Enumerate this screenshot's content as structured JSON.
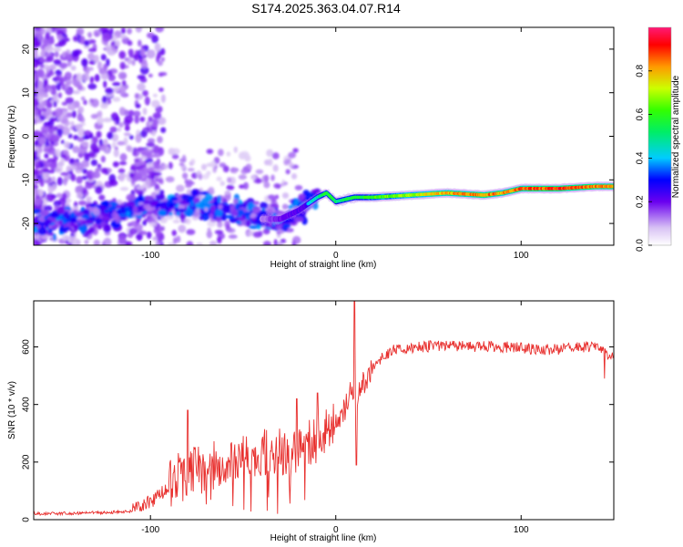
{
  "title": "S174.2025.363.04.07.R14",
  "chart_data": [
    {
      "type": "heatmap",
      "title": "S174.2025.363.04.07.R14",
      "xlabel": "Height of straight line (km)",
      "ylabel": "Frequency (Hz)",
      "xlim": [
        -163,
        150
      ],
      "ylim": [
        -25,
        25
      ],
      "xticks": [
        -100,
        0,
        100
      ],
      "xtick_labels": [
        "-100",
        "0",
        "100"
      ],
      "yticks": [
        -20,
        -10,
        0,
        10,
        20
      ],
      "ytick_labels": [
        "-20",
        "-10",
        "0",
        "10",
        "20"
      ],
      "colorbar": {
        "label": "Normalized spectral amplitude",
        "range": [
          0,
          1
        ],
        "ticks": [
          0.0,
          0.2,
          0.4,
          0.6,
          0.8
        ],
        "tick_labels": [
          "0.0",
          "0.2",
          "0.4",
          "0.6",
          "0.8"
        ]
      },
      "signal_track": {
        "description_points_x": [
          -163,
          -120,
          -100,
          -80,
          -60,
          -40,
          -30,
          -20,
          -10,
          -5,
          0,
          5,
          10,
          20,
          40,
          60,
          80,
          90,
          100,
          120,
          140,
          150
        ],
        "frequency_hz": [
          -20,
          -18,
          -16,
          -16,
          -17,
          -19,
          -19,
          -17,
          -14,
          -13,
          -15,
          -14.5,
          -14,
          -14,
          -13.5,
          -13,
          -13.5,
          -13,
          -12,
          -12,
          -11.5,
          -11.5
        ],
        "amplitude": [
          0.1,
          0.15,
          0.25,
          0.25,
          0.2,
          0.2,
          0.35,
          0.4,
          0.45,
          0.6,
          0.5,
          0.55,
          0.55,
          0.6,
          0.7,
          0.8,
          0.85,
          0.8,
          0.85,
          0.9,
          0.85,
          0.8
        ]
      }
    },
    {
      "type": "line",
      "xlabel": "Height of straight line (km)",
      "ylabel": "SNR (10 * v/v)",
      "xlim": [
        -163,
        150
      ],
      "ylim": [
        0,
        760
      ],
      "xticks": [
        -100,
        0,
        100
      ],
      "xtick_labels": [
        "-100",
        "0",
        "100"
      ],
      "yticks": [
        0,
        200,
        400,
        600
      ],
      "ytick_labels": [
        "0",
        "200",
        "400",
        "600"
      ],
      "color": "#e8302e",
      "series": [
        {
          "name": "SNR",
          "x": [
            -163,
            -140,
            -120,
            -110,
            -105,
            -100,
            -95,
            -90,
            -85,
            -80,
            -75,
            -70,
            -65,
            -60,
            -55,
            -50,
            -45,
            -40,
            -35,
            -30,
            -25,
            -20,
            -15,
            -10,
            -5,
            0,
            5,
            8,
            10,
            12,
            15,
            20,
            25,
            30,
            40,
            50,
            60,
            70,
            80,
            90,
            100,
            110,
            120,
            130,
            140,
            145,
            150
          ],
          "values": [
            20,
            22,
            25,
            30,
            45,
            60,
            85,
            110,
            150,
            160,
            170,
            160,
            185,
            165,
            195,
            210,
            190,
            230,
            215,
            230,
            200,
            240,
            260,
            270,
            300,
            340,
            380,
            440,
            420,
            430,
            470,
            520,
            560,
            585,
            595,
            600,
            605,
            600,
            600,
            598,
            595,
            590,
            590,
            595,
            600,
            575,
            570
          ],
          "spikes": [
            {
              "x": -80,
              "value": 380
            },
            {
              "x": -21,
              "value": 420
            },
            {
              "x": -10,
              "value": 440
            },
            {
              "x": 10,
              "value": 760
            },
            {
              "x": 11,
              "value": 190
            },
            {
              "x": 145,
              "value": 490
            }
          ]
        }
      ]
    }
  ]
}
